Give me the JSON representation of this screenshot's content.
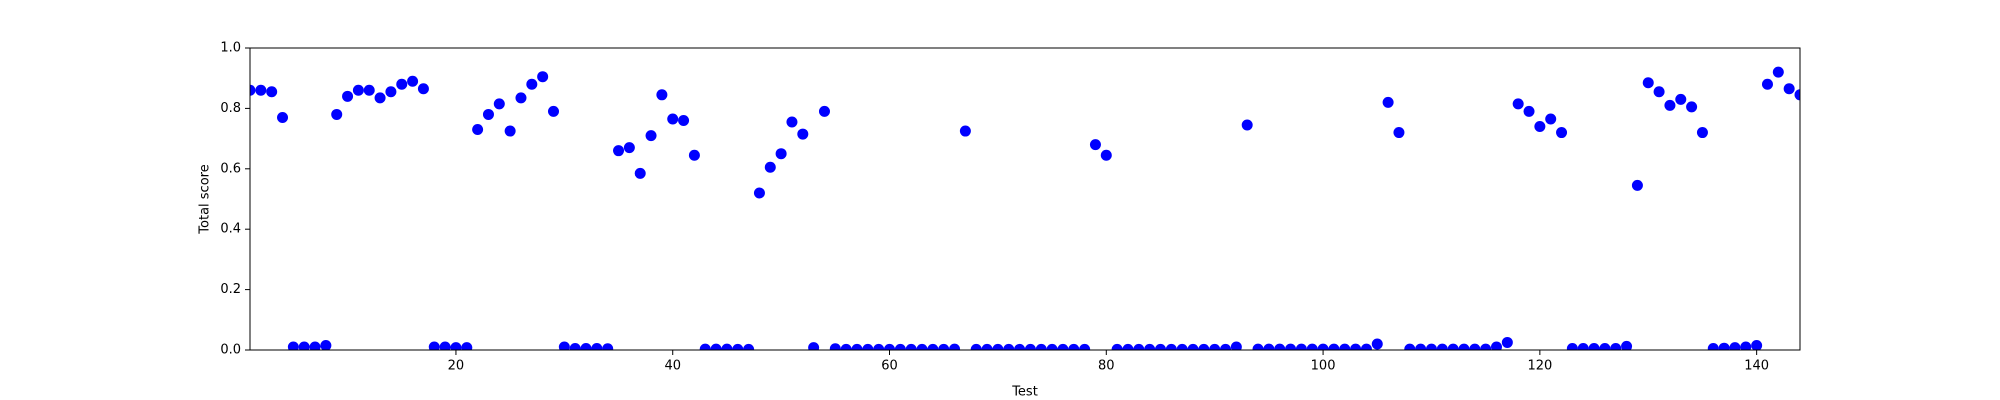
{
  "chart_data": {
    "type": "scatter",
    "xlabel": "Test",
    "ylabel": "Total score",
    "color": "#0000ff",
    "x": [
      1,
      2,
      3,
      4,
      5,
      6,
      7,
      8,
      9,
      10,
      11,
      12,
      13,
      14,
      15,
      16,
      17,
      18,
      19,
      20,
      21,
      22,
      23,
      24,
      25,
      26,
      27,
      28,
      29,
      30,
      31,
      32,
      33,
      34,
      35,
      36,
      37,
      38,
      39,
      40,
      41,
      42,
      43,
      44,
      45,
      46,
      47,
      48,
      49,
      50,
      51,
      52,
      53,
      54,
      55,
      56,
      57,
      58,
      59,
      60,
      61,
      62,
      63,
      64,
      65,
      66,
      67,
      68,
      69,
      70,
      71,
      72,
      73,
      74,
      75,
      76,
      77,
      78,
      79,
      80,
      81,
      82,
      83,
      84,
      85,
      86,
      87,
      88,
      89,
      90,
      91,
      92,
      93,
      94,
      95,
      96,
      97,
      98,
      99,
      100,
      101,
      102,
      103,
      104,
      105,
      106,
      107,
      108,
      109,
      110,
      111,
      112,
      113,
      114,
      115,
      116,
      117,
      118,
      119,
      120,
      121,
      122,
      123,
      124,
      125,
      126,
      127,
      128,
      129,
      130,
      131,
      132,
      133,
      134,
      135,
      136,
      137,
      138,
      139,
      140,
      141,
      142,
      143,
      144
    ],
    "values": [
      0.86,
      0.86,
      0.855,
      0.77,
      0.01,
      0.01,
      0.01,
      0.015,
      0.78,
      0.84,
      0.86,
      0.86,
      0.835,
      0.855,
      0.88,
      0.89,
      0.865,
      0.01,
      0.01,
      0.008,
      0.008,
      0.73,
      0.78,
      0.815,
      0.725,
      0.835,
      0.88,
      0.905,
      0.79,
      0.01,
      0.005,
      0.005,
      0.005,
      0.004,
      0.66,
      0.67,
      0.585,
      0.71,
      0.845,
      0.765,
      0.76,
      0.645,
      0.003,
      0.003,
      0.003,
      0.002,
      0.002,
      0.52,
      0.605,
      0.65,
      0.755,
      0.715,
      0.008,
      0.79,
      0.004,
      0.002,
      0.002,
      0.002,
      0.002,
      0.002,
      0.002,
      0.002,
      0.002,
      0.002,
      0.002,
      0.003,
      0.725,
      0.002,
      0.002,
      0.002,
      0.002,
      0.002,
      0.002,
      0.002,
      0.002,
      0.002,
      0.002,
      0.002,
      0.68,
      0.645,
      0.002,
      0.002,
      0.002,
      0.002,
      0.002,
      0.002,
      0.002,
      0.002,
      0.002,
      0.002,
      0.002,
      0.01,
      0.745,
      0.003,
      0.003,
      0.003,
      0.003,
      0.003,
      0.003,
      0.003,
      0.003,
      0.003,
      0.003,
      0.003,
      0.02,
      0.82,
      0.72,
      0.003,
      0.003,
      0.003,
      0.003,
      0.003,
      0.003,
      0.003,
      0.003,
      0.01,
      0.025,
      0.815,
      0.79,
      0.74,
      0.765,
      0.72,
      0.005,
      0.005,
      0.005,
      0.005,
      0.005,
      0.012,
      0.545,
      0.885,
      0.855,
      0.81,
      0.83,
      0.805,
      0.72,
      0.005,
      0.006,
      0.008,
      0.01,
      0.015,
      0.88,
      0.92,
      0.865,
      0.845
    ],
    "xlim": [
      1,
      144
    ],
    "xticks": [
      20,
      40,
      60,
      80,
      100,
      120,
      140
    ],
    "ylim": [
      0,
      1
    ],
    "yticks": [
      {
        "value": 0,
        "label": "0.0"
      },
      0.2,
      0.4,
      0.6,
      0.8,
      {
        "value": 1,
        "label": "1.0"
      }
    ]
  }
}
